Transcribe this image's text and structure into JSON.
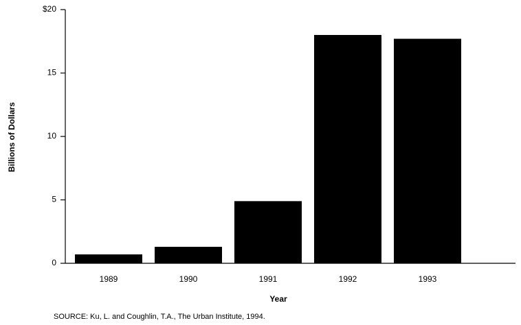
{
  "chart_data": {
    "type": "bar",
    "x_label": "Year",
    "y_label": "Billions of Dollars",
    "note": "SOURCE: Ku, L. and Coughlin, T.A., The Urban Institute, 1994.",
    "categories": [
      "1989",
      "1990",
      "1991",
      "1992",
      "1993"
    ],
    "values": [
      0.7,
      1.3,
      4.9,
      18.0,
      17.7
    ],
    "color": "#000000",
    "ylim": [
      0,
      20
    ],
    "yticks": [
      0,
      5,
      10,
      15,
      {
        "value": 20,
        "label": "$20"
      }
    ],
    "grid": false
  }
}
